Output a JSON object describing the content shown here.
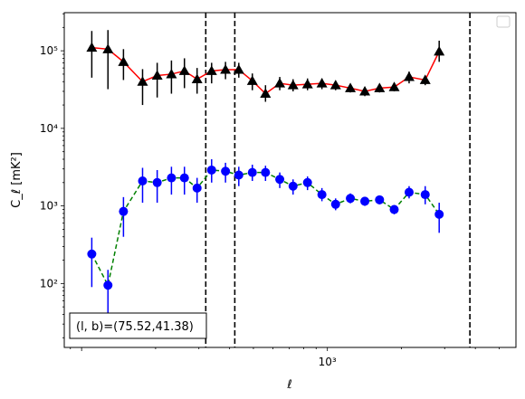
{
  "chart_data": {
    "type": "scatter",
    "title": "",
    "xlabel": "ℓ",
    "ylabel": "C_ℓ [mK²]",
    "xscale": "log",
    "yscale": "log",
    "xlim": [
      85,
      5850
    ],
    "ylim": [
      15,
      310000
    ],
    "x_tick_labels": [
      {
        "value": 1000,
        "label": "10³"
      }
    ],
    "y_tick_labels": [
      {
        "value": 100,
        "label": "10²"
      },
      {
        "value": 1000,
        "label": "10³"
      },
      {
        "value": 10000,
        "label": "10⁴"
      },
      {
        "value": 100000,
        "label": "10⁵"
      }
    ],
    "vlines": [
      320,
      420,
      3800
    ],
    "annotation": "(l, b)=(75.52,41.38)",
    "legend": "upper right (empty)",
    "grid": false,
    "series": [
      {
        "marker": "triangle",
        "marker_color": "#000000",
        "line_color": "#ff0000",
        "line_style": "solid",
        "points": [
          {
            "x": 110,
            "y": 110000,
            "lo": 45000,
            "hi": 180000
          },
          {
            "x": 128,
            "y": 105000,
            "lo": 32000,
            "hi": 185000
          },
          {
            "x": 148,
            "y": 72000,
            "lo": 42000,
            "hi": 105000
          },
          {
            "x": 177,
            "y": 40000,
            "lo": 20000,
            "hi": 58000
          },
          {
            "x": 203,
            "y": 48000,
            "lo": 25000,
            "hi": 70000
          },
          {
            "x": 232,
            "y": 50000,
            "lo": 28000,
            "hi": 75000
          },
          {
            "x": 262,
            "y": 55000,
            "lo": 33000,
            "hi": 80000
          },
          {
            "x": 295,
            "y": 43000,
            "lo": 28000,
            "hi": 60000
          },
          {
            "x": 338,
            "y": 55000,
            "lo": 38000,
            "hi": 70000
          },
          {
            "x": 385,
            "y": 57000,
            "lo": 43000,
            "hi": 72000
          },
          {
            "x": 436,
            "y": 57000,
            "lo": 45000,
            "hi": 70000
          },
          {
            "x": 495,
            "y": 41000,
            "lo": 31000,
            "hi": 51000
          },
          {
            "x": 560,
            "y": 28000,
            "lo": 22000,
            "hi": 36000
          },
          {
            "x": 640,
            "y": 38000,
            "lo": 31000,
            "hi": 46000
          },
          {
            "x": 725,
            "y": 36000,
            "lo": 30000,
            "hi": 43000
          },
          {
            "x": 830,
            "y": 37000,
            "lo": 31000,
            "hi": 44000
          },
          {
            "x": 950,
            "y": 38000,
            "lo": 32000,
            "hi": 44000
          },
          {
            "x": 1080,
            "y": 36000,
            "lo": 31000,
            "hi": 41000
          },
          {
            "x": 1240,
            "y": 33000,
            "lo": 29000,
            "hi": 37000
          },
          {
            "x": 1420,
            "y": 30000,
            "lo": 26000,
            "hi": 34000
          },
          {
            "x": 1630,
            "y": 33000,
            "lo": 29000,
            "hi": 37000
          },
          {
            "x": 1870,
            "y": 34000,
            "lo": 30000,
            "hi": 38000
          },
          {
            "x": 2150,
            "y": 46000,
            "lo": 38000,
            "hi": 54000
          },
          {
            "x": 2500,
            "y": 42000,
            "lo": 36000,
            "hi": 48000
          },
          {
            "x": 2850,
            "y": 98000,
            "lo": 72000,
            "hi": 135000
          }
        ]
      },
      {
        "marker": "circle",
        "marker_color": "#0000ff",
        "line_color": "#008000",
        "line_style": "dashed",
        "points": [
          {
            "x": 110,
            "y": 240,
            "lo": 90,
            "hi": 390
          },
          {
            "x": 128,
            "y": 95,
            "lo": 35,
            "hi": 150
          },
          {
            "x": 148,
            "y": 850,
            "lo": 400,
            "hi": 1300
          },
          {
            "x": 177,
            "y": 2100,
            "lo": 1100,
            "hi": 3100
          },
          {
            "x": 203,
            "y": 2000,
            "lo": 1100,
            "hi": 2900
          },
          {
            "x": 232,
            "y": 2300,
            "lo": 1400,
            "hi": 3200
          },
          {
            "x": 262,
            "y": 2300,
            "lo": 1400,
            "hi": 3200
          },
          {
            "x": 295,
            "y": 1700,
            "lo": 1100,
            "hi": 2300
          },
          {
            "x": 338,
            "y": 2900,
            "lo": 2000,
            "hi": 4000
          },
          {
            "x": 385,
            "y": 2800,
            "lo": 2000,
            "hi": 3600
          },
          {
            "x": 436,
            "y": 2500,
            "lo": 1800,
            "hi": 3200
          },
          {
            "x": 495,
            "y": 2700,
            "lo": 2100,
            "hi": 3400
          },
          {
            "x": 560,
            "y": 2700,
            "lo": 2100,
            "hi": 3300
          },
          {
            "x": 640,
            "y": 2200,
            "lo": 1700,
            "hi": 2700
          },
          {
            "x": 725,
            "y": 1800,
            "lo": 1400,
            "hi": 2200
          },
          {
            "x": 830,
            "y": 2000,
            "lo": 1600,
            "hi": 2400
          },
          {
            "x": 950,
            "y": 1400,
            "lo": 1150,
            "hi": 1700
          },
          {
            "x": 1080,
            "y": 1050,
            "lo": 880,
            "hi": 1250
          },
          {
            "x": 1240,
            "y": 1250,
            "lo": 1080,
            "hi": 1450
          },
          {
            "x": 1420,
            "y": 1150,
            "lo": 1000,
            "hi": 1300
          },
          {
            "x": 1630,
            "y": 1200,
            "lo": 1050,
            "hi": 1350
          },
          {
            "x": 1870,
            "y": 900,
            "lo": 780,
            "hi": 1020
          },
          {
            "x": 2150,
            "y": 1500,
            "lo": 1250,
            "hi": 1800
          },
          {
            "x": 2500,
            "y": 1400,
            "lo": 1050,
            "hi": 1800
          },
          {
            "x": 2850,
            "y": 780,
            "lo": 450,
            "hi": 1100
          }
        ]
      }
    ]
  }
}
